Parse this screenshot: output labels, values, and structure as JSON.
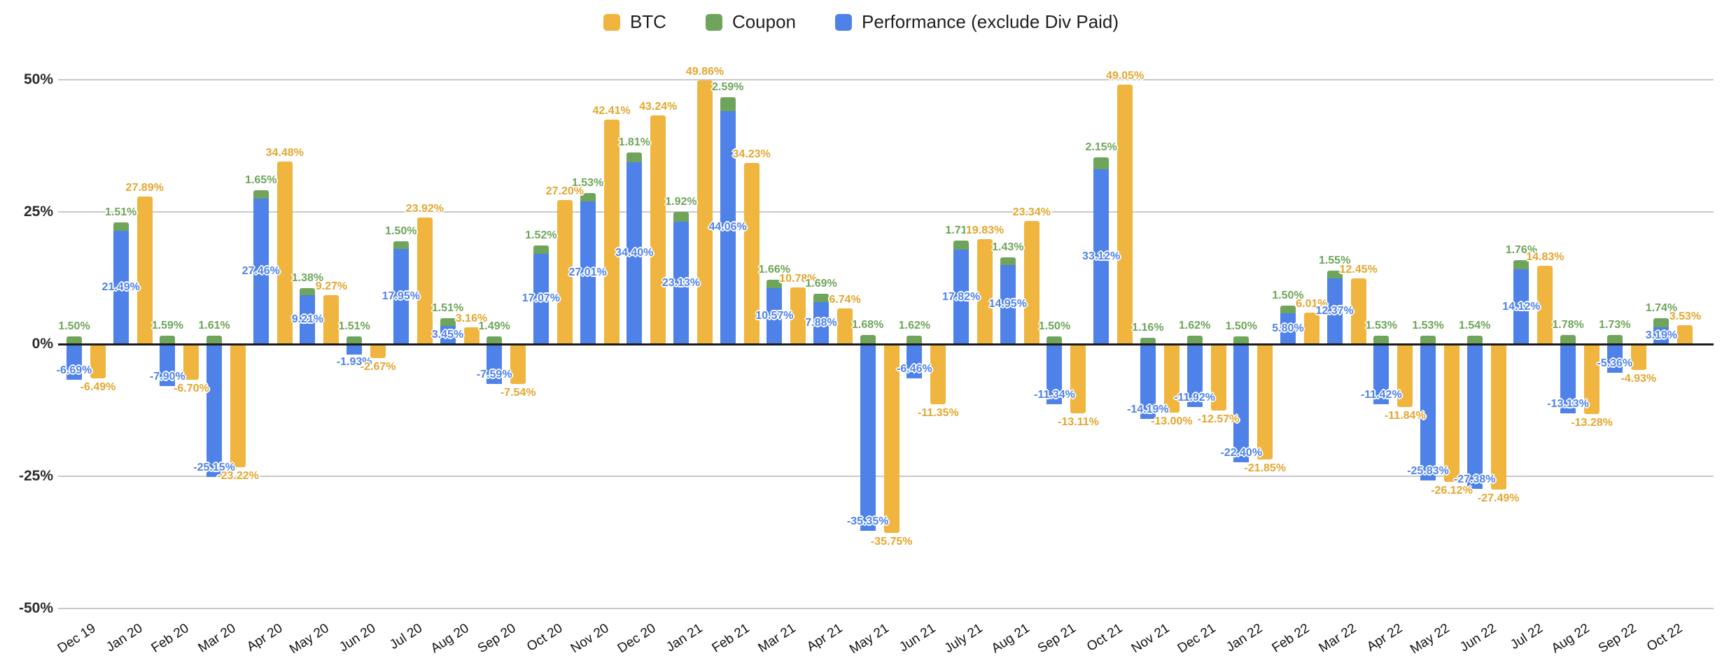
{
  "legend": {
    "items": [
      {
        "label": "BTC",
        "color": "#F0B53E"
      },
      {
        "label": "Coupon",
        "color": "#6EA55A"
      },
      {
        "label": "Performance (exclude Div Paid)",
        "color": "#4E82E8"
      }
    ]
  },
  "y_axis": {
    "ticks": [
      {
        "label": "50%",
        "value": 50
      },
      {
        "label": "25%",
        "value": 25
      },
      {
        "label": "0%",
        "value": 0
      },
      {
        "label": "-25%",
        "value": -25
      },
      {
        "label": "-50%",
        "value": -50
      }
    ]
  },
  "chart_data": {
    "type": "bar",
    "title": "",
    "legend_position": "top",
    "grid": true,
    "ylim": [
      -50,
      50
    ],
    "value_label_format": "two decimals with % sign",
    "structure": "Performance (exclude Div Paid) and Coupon are stacked in one column per month; BTC is a separate adjacent column",
    "categories": [
      "Dec 19",
      "Jan 20",
      "Feb 20",
      "Mar 20",
      "Apr 20",
      "May 20",
      "Jun 20",
      "Jul 20",
      "Aug 20",
      "Sep 20",
      "Oct 20",
      "Nov 20",
      "Dec 20",
      "Jan 21",
      "Feb 21",
      "Mar 21",
      "Apr 21",
      "May 21",
      "Jun 21",
      "July 21",
      "Aug 21",
      "Sep 21",
      "Oct 21",
      "Nov 21",
      "Dec 21",
      "Jan 22",
      "Feb 22",
      "Mar 22",
      "Apr 22",
      "May 22",
      "Jun 22",
      "Jul 22",
      "Aug 22",
      "Sep 22",
      "Oct 22"
    ],
    "series": [
      {
        "name": "BTC",
        "color": "#F0B53E",
        "values": [
          -6.49,
          27.89,
          -6.7,
          -23.22,
          34.48,
          9.27,
          -2.67,
          23.92,
          3.16,
          -7.54,
          27.2,
          42.41,
          43.24,
          49.86,
          34.23,
          10.78,
          6.74,
          -35.75,
          -11.35,
          19.83,
          23.34,
          -13.11,
          49.05,
          -13.0,
          -12.57,
          -21.85,
          6.01,
          12.45,
          -11.84,
          -26.12,
          -27.49,
          14.83,
          -13.28,
          -4.93,
          3.53
        ]
      },
      {
        "name": "Coupon",
        "color": "#6EA55A",
        "values": [
          1.5,
          1.51,
          1.59,
          1.61,
          1.65,
          1.38,
          1.51,
          1.5,
          1.51,
          1.49,
          1.52,
          1.53,
          1.81,
          1.92,
          2.59,
          1.66,
          1.69,
          1.68,
          1.62,
          1.71,
          1.43,
          1.5,
          2.15,
          1.16,
          1.62,
          1.5,
          1.5,
          1.55,
          1.53,
          1.53,
          1.54,
          1.76,
          1.78,
          1.73,
          1.74
        ]
      },
      {
        "name": "Performance (exclude Div Paid)",
        "color": "#4E82E8",
        "values": [
          -6.69,
          21.49,
          -7.9,
          -25.15,
          27.46,
          9.21,
          -1.93,
          17.95,
          3.45,
          -7.59,
          17.07,
          27.01,
          34.4,
          23.13,
          44.06,
          10.57,
          7.88,
          -35.35,
          -6.46,
          17.82,
          14.95,
          -11.34,
          33.12,
          -14.19,
          -11.92,
          -22.4,
          5.8,
          12.37,
          -11.42,
          -25.83,
          -27.38,
          14.12,
          -13.13,
          -5.36,
          3.19
        ]
      }
    ]
  }
}
